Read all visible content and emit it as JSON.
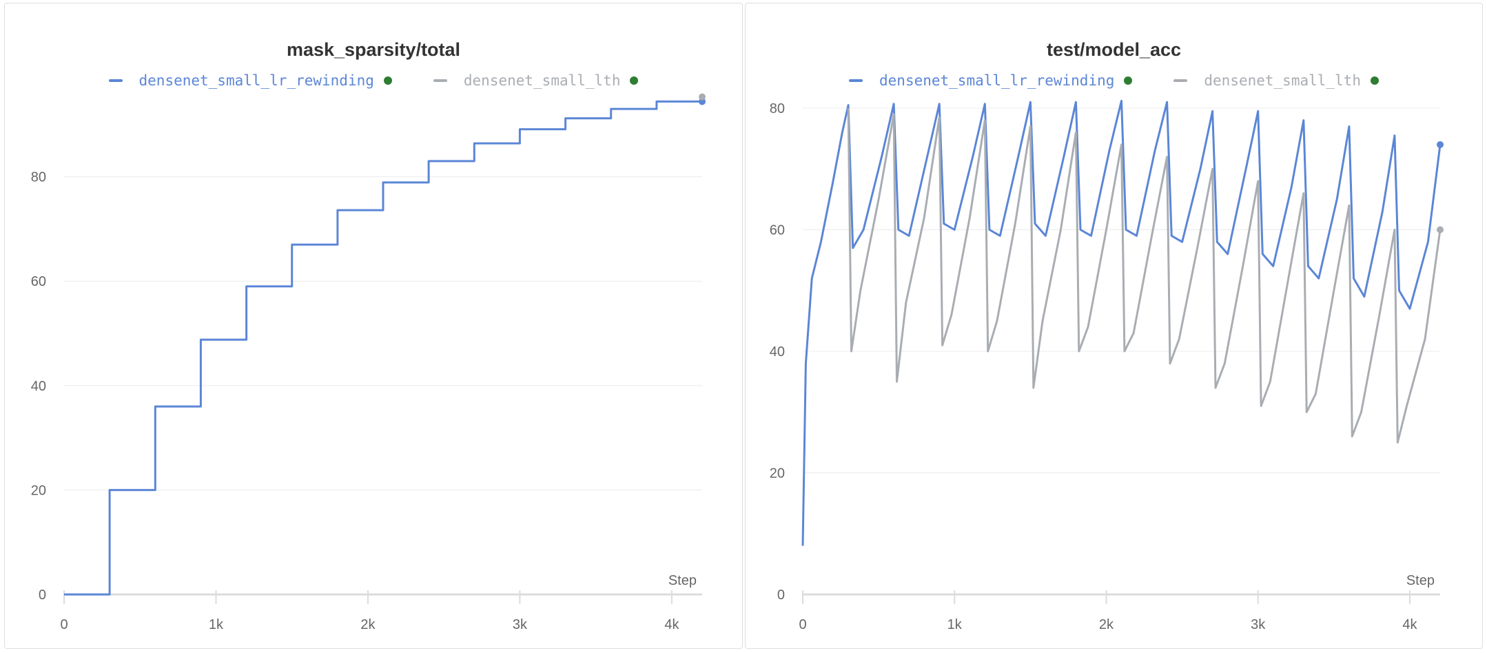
{
  "charts": [
    {
      "title": "mask_sparsity/total",
      "step_label": "Step",
      "legend": [
        {
          "name": "densenet_small_lr_rewinding",
          "color": "#5b86d6"
        },
        {
          "name": "densenet_small_lth",
          "color": "#a9adb2"
        }
      ],
      "x_ticks": [
        "0",
        "1k",
        "2k",
        "3k",
        "4k"
      ],
      "y_ticks": [
        "0",
        "20",
        "40",
        "60",
        "80"
      ]
    },
    {
      "title": "test/model_acc",
      "step_label": "Step",
      "legend": [
        {
          "name": "densenet_small_lr_rewinding",
          "color": "#5b86d6"
        },
        {
          "name": "densenet_small_lth",
          "color": "#a9adb2"
        }
      ],
      "x_ticks": [
        "0",
        "1k",
        "2k",
        "3k",
        "4k"
      ],
      "y_ticks": [
        "0",
        "20",
        "40",
        "60",
        "80"
      ]
    }
  ],
  "chart_data": [
    {
      "type": "line",
      "title": "mask_sparsity/total",
      "xlabel": "Step",
      "xlim": [
        0,
        4200
      ],
      "ylim": [
        0,
        100
      ],
      "series": [
        {
          "name": "densenet_small_lr_rewinding",
          "color": "#5b86d6",
          "x": [
            0,
            300,
            300,
            600,
            600,
            900,
            900,
            1200,
            1200,
            1500,
            1500,
            1800,
            1800,
            2100,
            2100,
            2400,
            2400,
            2700,
            2700,
            3000,
            3000,
            3300,
            3300,
            3600,
            3600,
            3900,
            3900,
            4200
          ],
          "y": [
            0,
            0,
            20,
            20,
            36,
            36,
            48.8,
            48.8,
            59,
            59,
            67,
            67,
            73.6,
            73.6,
            78.9,
            78.9,
            83,
            83,
            86.4,
            86.4,
            89.1,
            89.1,
            91.2,
            91.2,
            93,
            93,
            94.4,
            94.4
          ]
        },
        {
          "name": "densenet_small_lth",
          "color": "#a9adb2",
          "x": [
            4200
          ],
          "y": [
            95.3
          ]
        }
      ],
      "grid": true,
      "legend_position": "top"
    },
    {
      "type": "line",
      "title": "test/model_acc",
      "xlabel": "Step",
      "xlim": [
        0,
        4200
      ],
      "ylim": [
        0,
        80
      ],
      "series": [
        {
          "name": "densenet_small_lr_rewinding",
          "color": "#5b86d6",
          "x": [
            0,
            20,
            60,
            120,
            200,
            260,
            300,
            330,
            400,
            520,
            600,
            630,
            700,
            820,
            900,
            930,
            1000,
            1120,
            1200,
            1230,
            1300,
            1420,
            1500,
            1530,
            1600,
            1720,
            1800,
            1830,
            1900,
            2020,
            2100,
            2130,
            2200,
            2320,
            2400,
            2430,
            2500,
            2620,
            2700,
            2730,
            2800,
            2920,
            3000,
            3030,
            3100,
            3220,
            3300,
            3330,
            3400,
            3520,
            3600,
            3630,
            3700,
            3820,
            3900,
            3930,
            4000,
            4120,
            4200
          ],
          "y": [
            8,
            38,
            52,
            58,
            68,
            76,
            80.5,
            57,
            60,
            72,
            80.7,
            60,
            59,
            72,
            80.7,
            61,
            60,
            72,
            80.7,
            60,
            59,
            72,
            81,
            61,
            59,
            72,
            81,
            60,
            59,
            73,
            81.2,
            60,
            59,
            73,
            81,
            59,
            58,
            70,
            79.5,
            58,
            56,
            70,
            79.5,
            56,
            54,
            67,
            78,
            54,
            52,
            65,
            77,
            52,
            49,
            63,
            75.5,
            50,
            47,
            58,
            74
          ]
        },
        {
          "name": "densenet_small_lth",
          "color": "#a9adb2",
          "x": [
            300,
            320,
            380,
            500,
            600,
            620,
            680,
            800,
            900,
            920,
            980,
            1100,
            1200,
            1220,
            1280,
            1400,
            1500,
            1520,
            1580,
            1700,
            1800,
            1820,
            1880,
            2000,
            2100,
            2120,
            2180,
            2300,
            2400,
            2420,
            2480,
            2600,
            2700,
            2720,
            2780,
            2900,
            3000,
            3020,
            3080,
            3200,
            3300,
            3320,
            3380,
            3500,
            3600,
            3620,
            3680,
            3800,
            3900,
            3920,
            3980,
            4100,
            4200
          ],
          "y": [
            80,
            40,
            50,
            65,
            79,
            35,
            48,
            62,
            78.5,
            41,
            46,
            62,
            78,
            40,
            45,
            61,
            77,
            34,
            45,
            60,
            76,
            40,
            44,
            60,
            74,
            40,
            43,
            59,
            72,
            38,
            42,
            57,
            70,
            34,
            38,
            54,
            68,
            31,
            35,
            52,
            66,
            30,
            33,
            50,
            64,
            26,
            30,
            46,
            60,
            25,
            31,
            42,
            60
          ]
        }
      ],
      "grid": true,
      "legend_position": "top"
    }
  ]
}
